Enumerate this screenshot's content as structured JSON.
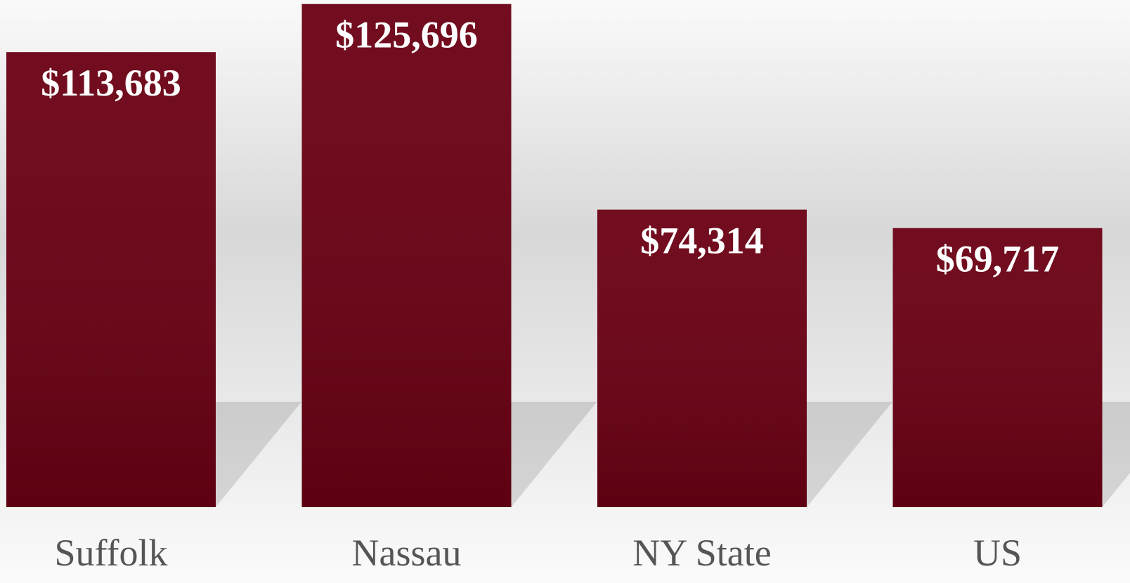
{
  "chart_data": {
    "type": "bar",
    "categories": [
      "Suffolk",
      "Nassau",
      "NY State",
      "US"
    ],
    "values": [
      113683,
      125696,
      74314,
      69717
    ],
    "value_labels": [
      "$113,683",
      "$125,696",
      "$74,314",
      "$69,717"
    ],
    "color": "#6a0013",
    "ylim": [
      0,
      126000
    ]
  }
}
